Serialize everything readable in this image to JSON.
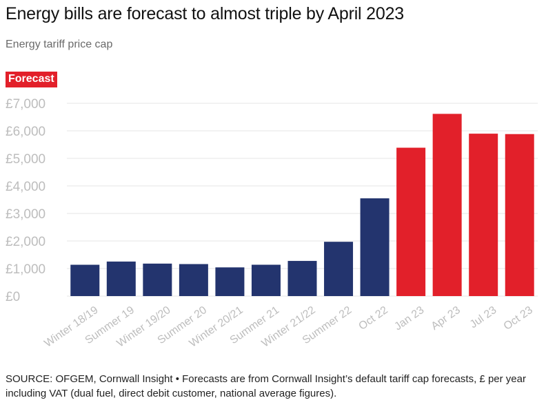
{
  "title": "Energy bills are forecast to almost triple by April 2023",
  "subtitle": "Energy tariff price cap",
  "badge": "Forecast",
  "source": "SOURCE: OFGEM, Cornwall Insight • Forecasts are from Cornwall Insight’s default tariff cap forecasts, £ per year including VAT (dual fuel, direct debit customer, national average figures).",
  "colors": {
    "actual": "#23346e",
    "forecast": "#e2202a",
    "grid": "#e6e6e6",
    "tick": "#bdbdbd"
  },
  "chart_data": {
    "type": "bar",
    "title": "Energy bills are forecast to almost triple by April 2023",
    "subtitle": "Energy tariff price cap",
    "categories": [
      "Winter 18/19",
      "Summer 19",
      "Winter 19/20",
      "Summer 20",
      "Winter 20/21",
      "Summer 21",
      "Winter 21/22",
      "Summer 22",
      "Oct 22",
      "Jan 23",
      "Apr 23",
      "Jul 23",
      "Oct 23"
    ],
    "values": [
      1137,
      1254,
      1179,
      1162,
      1042,
      1138,
      1277,
      1971,
      3549,
      5387,
      6616,
      5897,
      5882
    ],
    "forecast": [
      false,
      false,
      false,
      false,
      false,
      false,
      false,
      false,
      false,
      true,
      true,
      true,
      true
    ],
    "ylim": [
      0,
      7000
    ],
    "yticks": [
      0,
      1000,
      2000,
      3000,
      4000,
      5000,
      6000,
      7000
    ],
    "ytick_labels": [
      "£0",
      "£1,000",
      "£2,000",
      "£3,000",
      "£4,000",
      "£5,000",
      "£6,000",
      "£7,000"
    ],
    "grid": true,
    "xlabel": "",
    "ylabel": ""
  }
}
